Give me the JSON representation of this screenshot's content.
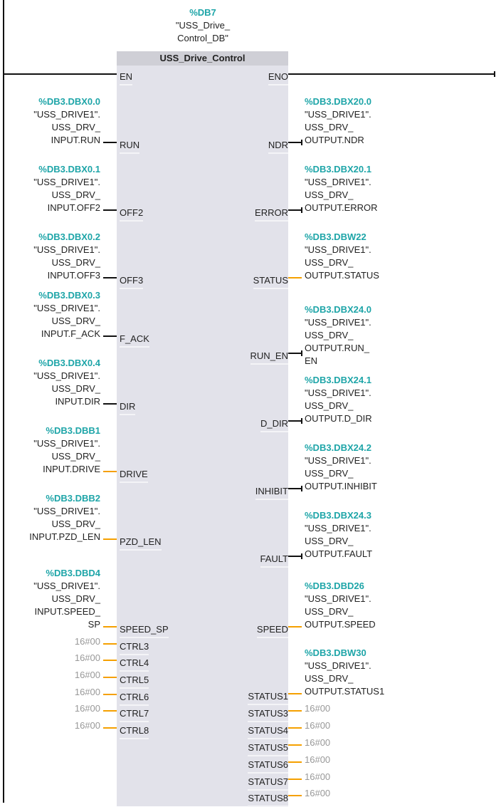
{
  "instance": {
    "address": "%DB7",
    "name_lines": [
      "\"USS_Drive_",
      "Control_DB\""
    ]
  },
  "block": {
    "title": "USS_Drive_Control"
  },
  "colors": {
    "address": "#1ea5a8",
    "bool_wire": "#111111",
    "word_wire": "#f5a000",
    "constant": "#999999",
    "block_bg": "#e2e2ea"
  },
  "inputs": [
    {
      "pin": "EN",
      "type": "bool"
    },
    {
      "pin": "RUN",
      "type": "bool",
      "address": "%DB3.DBX0.0",
      "lines": [
        "\"USS_DRIVE1\".",
        "USS_DRV_",
        "INPUT.RUN"
      ]
    },
    {
      "pin": "OFF2",
      "type": "bool",
      "address": "%DB3.DBX0.1",
      "lines": [
        "\"USS_DRIVE1\".",
        "USS_DRV_",
        "INPUT.OFF2"
      ]
    },
    {
      "pin": "OFF3",
      "type": "bool",
      "address": "%DB3.DBX0.2",
      "lines": [
        "\"USS_DRIVE1\".",
        "USS_DRV_",
        "INPUT.OFF3"
      ]
    },
    {
      "pin": "F_ACK",
      "type": "bool",
      "address": "%DB3.DBX0.3",
      "lines": [
        "\"USS_DRIVE1\".",
        "USS_DRV_",
        "INPUT.F_ACK"
      ]
    },
    {
      "pin": "DIR",
      "type": "bool",
      "address": "%DB3.DBX0.4",
      "lines": [
        "\"USS_DRIVE1\".",
        "USS_DRV_",
        "INPUT.DIR"
      ]
    },
    {
      "pin": "DRIVE",
      "type": "word",
      "address": "%DB3.DBB1",
      "lines": [
        "\"USS_DRIVE1\".",
        "USS_DRV_",
        "INPUT.DRIVE"
      ]
    },
    {
      "pin": "PZD_LEN",
      "type": "word",
      "address": "%DB3.DBB2",
      "lines": [
        "\"USS_DRIVE1\".",
        "USS_DRV_",
        "INPUT.PZD_LEN"
      ]
    },
    {
      "pin": "SPEED_SP",
      "type": "word",
      "address": "%DB3.DBD4",
      "lines": [
        "\"USS_DRIVE1\".",
        "USS_DRV_",
        "INPUT.SPEED_",
        "SP"
      ]
    },
    {
      "pin": "CTRL3",
      "type": "word",
      "constant": "16#00"
    },
    {
      "pin": "CTRL4",
      "type": "word",
      "constant": "16#00"
    },
    {
      "pin": "CTRL5",
      "type": "word",
      "constant": "16#00"
    },
    {
      "pin": "CTRL6",
      "type": "word",
      "constant": "16#00"
    },
    {
      "pin": "CTRL7",
      "type": "word",
      "constant": "16#00"
    },
    {
      "pin": "CTRL8",
      "type": "word",
      "constant": "16#00"
    }
  ],
  "outputs": [
    {
      "pin": "ENO",
      "type": "bool"
    },
    {
      "pin": "NDR",
      "type": "bool",
      "address": "%DB3.DBX20.0",
      "lines": [
        "\"USS_DRIVE1\".",
        "USS_DRV_",
        "OUTPUT.NDR"
      ]
    },
    {
      "pin": "ERROR",
      "type": "bool",
      "address": "%DB3.DBX20.1",
      "lines": [
        "\"USS_DRIVE1\".",
        "USS_DRV_",
        "OUTPUT.ERROR"
      ]
    },
    {
      "pin": "STATUS",
      "type": "word",
      "address": "%DB3.DBW22",
      "lines": [
        "\"USS_DRIVE1\".",
        "USS_DRV_",
        "OUTPUT.STATUS"
      ]
    },
    {
      "pin": "RUN_EN",
      "type": "bool",
      "address": "%DB3.DBX24.0",
      "lines": [
        "\"USS_DRIVE1\".",
        "USS_DRV_",
        "OUTPUT.RUN_",
        "EN"
      ]
    },
    {
      "pin": "D_DIR",
      "type": "bool",
      "address": "%DB3.DBX24.1",
      "lines": [
        "\"USS_DRIVE1\".",
        "USS_DRV_",
        "OUTPUT.D_DIR"
      ]
    },
    {
      "pin": "INHIBIT",
      "type": "bool",
      "address": "%DB3.DBX24.2",
      "lines": [
        "\"USS_DRIVE1\".",
        "USS_DRV_",
        "OUTPUT.INHIBIT"
      ]
    },
    {
      "pin": "FAULT",
      "type": "bool",
      "address": "%DB3.DBX24.3",
      "lines": [
        "\"USS_DRIVE1\".",
        "USS_DRV_",
        "OUTPUT.FAULT"
      ]
    },
    {
      "pin": "SPEED",
      "type": "word",
      "address": "%DB3.DBD26",
      "lines": [
        "\"USS_DRIVE1\".",
        "USS_DRV_",
        "OUTPUT.SPEED"
      ]
    },
    {
      "pin": "STATUS1",
      "type": "word",
      "address": "%DB3.DBW30",
      "lines": [
        "\"USS_DRIVE1\".",
        "USS_DRV_",
        "OUTPUT.STATUS1"
      ]
    },
    {
      "pin": "STATUS3",
      "type": "word",
      "constant": "16#00"
    },
    {
      "pin": "STATUS4",
      "type": "word",
      "constant": "16#00"
    },
    {
      "pin": "STATUS5",
      "type": "word",
      "constant": "16#00"
    },
    {
      "pin": "STATUS6",
      "type": "word",
      "constant": "16#00"
    },
    {
      "pin": "STATUS7",
      "type": "word",
      "constant": "16#00"
    },
    {
      "pin": "STATUS8",
      "type": "word",
      "constant": "16#00"
    }
  ]
}
